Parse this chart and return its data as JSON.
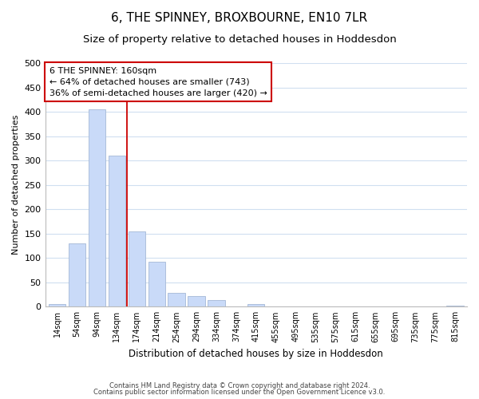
{
  "title": "6, THE SPINNEY, BROXBOURNE, EN10 7LR",
  "subtitle": "Size of property relative to detached houses in Hoddesdon",
  "xlabel": "Distribution of detached houses by size in Hoddesdon",
  "ylabel": "Number of detached properties",
  "footnote1": "Contains HM Land Registry data © Crown copyright and database right 2024.",
  "footnote2": "Contains public sector information licensed under the Open Government Licence v3.0.",
  "bar_labels": [
    "14sqm",
    "54sqm",
    "94sqm",
    "134sqm",
    "174sqm",
    "214sqm",
    "254sqm",
    "294sqm",
    "334sqm",
    "374sqm",
    "415sqm",
    "455sqm",
    "495sqm",
    "535sqm",
    "575sqm",
    "615sqm",
    "655sqm",
    "695sqm",
    "735sqm",
    "775sqm",
    "815sqm"
  ],
  "bar_values": [
    5,
    130,
    405,
    310,
    155,
    92,
    29,
    22,
    14,
    0,
    5,
    0,
    0,
    0,
    0,
    0,
    0,
    0,
    0,
    0,
    2
  ],
  "bar_color": "#c9daf8",
  "bar_edge_color": "#a4b8d6",
  "grid_color": "#d0dff0",
  "reference_line_color": "#cc0000",
  "annotation_line1": "6 THE SPINNEY: 160sqm",
  "annotation_line2": "← 64% of detached houses are smaller (743)",
  "annotation_line3": "36% of semi-detached houses are larger (420) →",
  "annotation_box_color": "#ffffff",
  "annotation_box_edge": "#cc0000",
  "ylim": [
    0,
    500
  ],
  "yticks": [
    0,
    50,
    100,
    150,
    200,
    250,
    300,
    350,
    400,
    450,
    500
  ],
  "background_color": "#ffffff",
  "title_fontsize": 11,
  "subtitle_fontsize": 9.5
}
